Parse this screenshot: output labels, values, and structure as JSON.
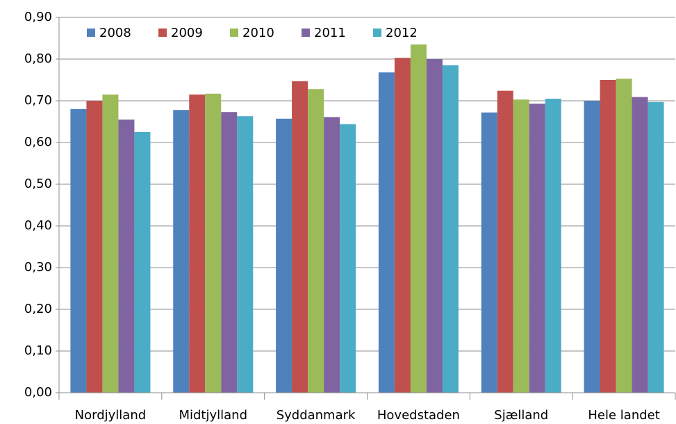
{
  "chart_data": {
    "type": "bar",
    "categories": [
      "Nordjylland",
      "Midtjylland",
      "Syddanmark",
      "Hovedstaden",
      "Sjælland",
      "Hele landet"
    ],
    "series": [
      {
        "name": "2008",
        "color": "#4f81bd",
        "values": [
          0.68,
          0.678,
          0.657,
          0.768,
          0.672,
          0.7
        ]
      },
      {
        "name": "2009",
        "color": "#c0504d",
        "values": [
          0.7,
          0.715,
          0.747,
          0.803,
          0.724,
          0.75
        ]
      },
      {
        "name": "2010",
        "color": "#9bbb59",
        "values": [
          0.715,
          0.717,
          0.728,
          0.835,
          0.703,
          0.753
        ]
      },
      {
        "name": "2011",
        "color": "#8064a2",
        "values": [
          0.655,
          0.673,
          0.661,
          0.8,
          0.693,
          0.709
        ]
      },
      {
        "name": "2012",
        "color": "#4bacc6",
        "values": [
          0.625,
          0.663,
          0.644,
          0.785,
          0.705,
          0.697
        ]
      }
    ],
    "ylim": [
      0,
      0.9
    ],
    "yticks": [
      {
        "value": 0,
        "label": "0,00"
      },
      {
        "value": 0.1,
        "label": "0,10"
      },
      {
        "value": 0.2,
        "label": "0,20"
      },
      {
        "value": 0.3,
        "label": "0,30"
      },
      {
        "value": 0.4,
        "label": "0,40"
      },
      {
        "value": 0.5,
        "label": "0,50"
      },
      {
        "value": 0.6,
        "label": "0,60"
      },
      {
        "value": 0.7,
        "label": "0,70"
      },
      {
        "value": 0.8,
        "label": "0,80"
      },
      {
        "value": 0.9,
        "label": "0,90"
      }
    ],
    "grid": true,
    "legend": "top-left"
  }
}
